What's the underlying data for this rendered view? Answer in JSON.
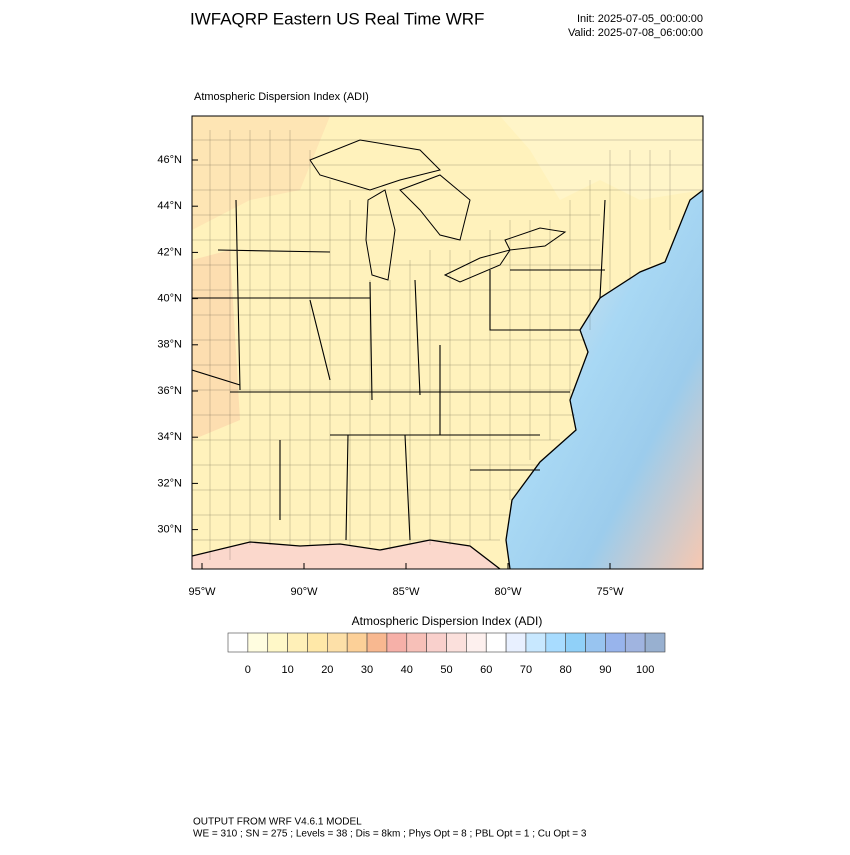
{
  "header": {
    "title": "IWFAQRP Eastern US Real Time WRF",
    "init": "Init: 2025-07-05_00:00:00",
    "valid": "Valid: 2025-07-08_06:00:00"
  },
  "map": {
    "subtitle": "Atmospheric Dispersion Index   (ADI)",
    "lat_labels": [
      "46°N",
      "44°N",
      "42°N",
      "40°N",
      "38°N",
      "36°N",
      "34°N",
      "32°N",
      "30°N"
    ],
    "lon_labels": [
      "95°W",
      "90°W",
      "85°W",
      "80°W",
      "75°W"
    ]
  },
  "colorbar": {
    "title": "Atmospheric Dispersion Index  (ADI)",
    "ticks": [
      0,
      10,
      20,
      30,
      40,
      50,
      60,
      70,
      80,
      90,
      100
    ],
    "colors": [
      "#ffffff",
      "#fffde0",
      "#fff8c8",
      "#fff0b8",
      "#ffe8a8",
      "#fde0a8",
      "#fcd098",
      "#f8b890",
      "#f6b0a8",
      "#f7c0b8",
      "#f9d0cc",
      "#fbe0dc",
      "#fdf0ee",
      "#ffffff",
      "#e8f0ff",
      "#c8e8ff",
      "#a8dcff",
      "#90d0f8",
      "#98c4f0",
      "#98b4ec",
      "#a0b4e0",
      "#98b0d0"
    ]
  },
  "footer": {
    "line1": "OUTPUT FROM WRF V4.6.1 MODEL",
    "line2": "WE = 310 ; SN = 275 ; Levels = 38 ; Dis = 8km ; Phys Opt = 8 ; PBL Opt = 1 ; Cu Opt = 3"
  }
}
